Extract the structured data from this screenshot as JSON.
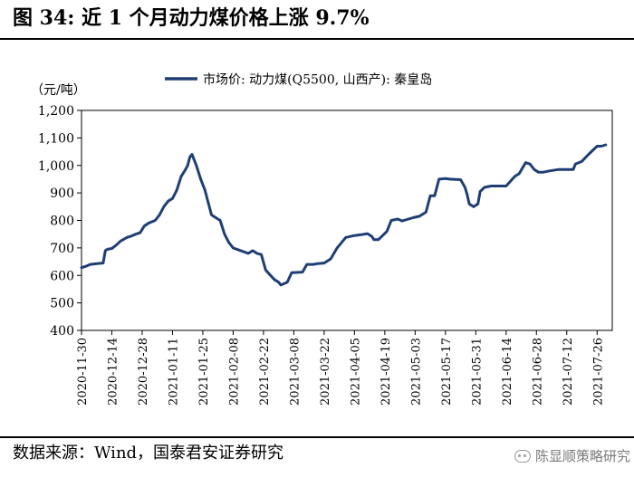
{
  "title": "图 34:  近 1 个月动力煤价格上涨 9.7%",
  "source": "数据来源：Wind，国泰君安证券研究",
  "watermark": "陈显顺策略研究",
  "chart_data": {
    "type": "line",
    "y_unit": "（元/吨）",
    "legend_position": "top-center",
    "grid": false,
    "ylim": [
      400,
      1200
    ],
    "yticks": [
      "400",
      "500",
      "600",
      "700",
      "800",
      "900",
      "1,000",
      "1,100",
      "1,200"
    ],
    "xlim": [
      "2020-11-30",
      "2021-08-02"
    ],
    "xticks": [
      "2020-11-30",
      "2020-12-14",
      "2020-12-28",
      "2021-01-11",
      "2021-01-25",
      "2021-02-08",
      "2021-02-22",
      "2021-03-08",
      "2021-03-22",
      "2021-04-05",
      "2021-04-19",
      "2021-05-03",
      "2021-05-17",
      "2021-05-31",
      "2021-06-14",
      "2021-06-28",
      "2021-07-12",
      "2021-07-26"
    ],
    "series": [
      {
        "name": "市场价: 动力煤(Q5500, 山西产): 秦皇岛",
        "color": "#1f3f74",
        "x": [
          "2020-11-30",
          "2020-12-02",
          "2020-12-04",
          "2020-12-07",
          "2020-12-10",
          "2020-12-11",
          "2020-12-12",
          "2020-12-14",
          "2020-12-16",
          "2020-12-18",
          "2020-12-21",
          "2020-12-23",
          "2020-12-25",
          "2020-12-27",
          "2020-12-29",
          "2020-12-31",
          "2021-01-03",
          "2021-01-05",
          "2021-01-07",
          "2021-01-09",
          "2021-01-11",
          "2021-01-13",
          "2021-01-15",
          "2021-01-17",
          "2021-01-18",
          "2021-01-19",
          "2021-01-20",
          "2021-01-22",
          "2021-01-24",
          "2021-01-26",
          "2021-01-27",
          "2021-01-29",
          "2021-01-31",
          "2021-02-02",
          "2021-02-04",
          "2021-02-06",
          "2021-02-08",
          "2021-02-15",
          "2021-02-17",
          "2021-02-19",
          "2021-02-21",
          "2021-02-23",
          "2021-02-25",
          "2021-02-27",
          "2021-03-01",
          "2021-03-02",
          "2021-03-05",
          "2021-03-07",
          "2021-03-12",
          "2021-03-14",
          "2021-03-17",
          "2021-03-19",
          "2021-03-22",
          "2021-03-25",
          "2021-03-28",
          "2021-04-01",
          "2021-04-05",
          "2021-04-08",
          "2021-04-11",
          "2021-04-13",
          "2021-04-14",
          "2021-04-16",
          "2021-04-18",
          "2021-04-20",
          "2021-04-22",
          "2021-04-25",
          "2021-04-27",
          "2021-05-02",
          "2021-05-05",
          "2021-05-06",
          "2021-05-08",
          "2021-05-10",
          "2021-05-12",
          "2021-05-14",
          "2021-05-17",
          "2021-05-19",
          "2021-05-24",
          "2021-05-26",
          "2021-05-27",
          "2021-05-28",
          "2021-05-30",
          "2021-06-01",
          "2021-06-02",
          "2021-06-04",
          "2021-06-07",
          "2021-06-14",
          "2021-06-18",
          "2021-06-20",
          "2021-06-23",
          "2021-06-25",
          "2021-06-27",
          "2021-06-29",
          "2021-07-01",
          "2021-07-04",
          "2021-07-08",
          "2021-07-15",
          "2021-07-16",
          "2021-07-19",
          "2021-07-22",
          "2021-07-26",
          "2021-07-28",
          "2021-07-30"
        ],
        "values": [
          628,
          633,
          640,
          643,
          645,
          690,
          695,
          698,
          710,
          725,
          738,
          743,
          750,
          755,
          780,
          790,
          800,
          820,
          850,
          870,
          880,
          910,
          960,
          985,
          1000,
          1030,
          1040,
          1000,
          950,
          910,
          880,
          820,
          810,
          800,
          750,
          720,
          700,
          680,
          690,
          680,
          676,
          620,
          602,
          585,
          575,
          565,
          575,
          610,
          612,
          640,
          640,
          643,
          645,
          660,
          700,
          738,
          745,
          748,
          752,
          742,
          730,
          730,
          745,
          760,
          800,
          805,
          798,
          810,
          815,
          820,
          830,
          890,
          890,
          950,
          952,
          950,
          948,
          920,
          895,
          860,
          850,
          860,
          905,
          920,
          925,
          925,
          960,
          970,
          1010,
          1005,
          985,
          975,
          975,
          980,
          985,
          985,
          1005,
          1015,
          1040,
          1070,
          1070,
          1075
        ]
      }
    ]
  }
}
